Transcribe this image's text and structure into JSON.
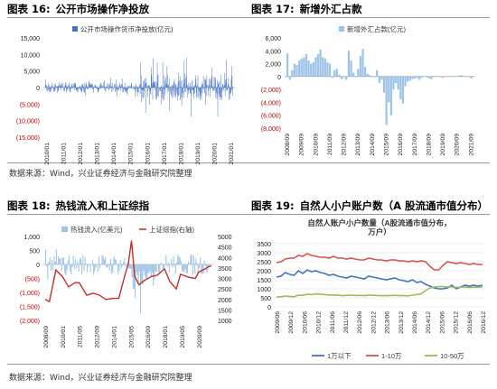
{
  "panels": {
    "p16": {
      "label": "图表 16:",
      "title": "公开市场操作净投放"
    },
    "p17": {
      "label": "图表 17:",
      "title": "新增外汇占款"
    },
    "p18": {
      "label": "图表 18:",
      "title": "热钱流入和上证综指"
    },
    "p19": {
      "label": "图表 19:",
      "title": "自然人小户账户数（A 股流通市值分布）"
    }
  },
  "sources": {
    "top": "数据来源：Wind，兴业证券经济与金融研究院整理",
    "bottom": "数据来源：Wind，兴业证券经济与金融研究院整理"
  },
  "colors": {
    "blue_bar": "#4472c4",
    "light_bar": "#9dc3e6",
    "red": "#c0302e",
    "blue_line": "#4472c4",
    "orange_line": "#d9534f",
    "green_line": "#9bbb59",
    "negative_text": "#c00000"
  },
  "chart_data": [
    {
      "type": "bar",
      "legend": [
        "公开市场操作货币净投放(亿元)"
      ],
      "legend_position": "top",
      "x_ticks": [
        "2010/01",
        "2011/01",
        "2012/01",
        "2013/01",
        "2014/01",
        "2015/01",
        "2016/01",
        "2017/01",
        "2018/01",
        "2019/01",
        "2020/01",
        "2021/01"
      ],
      "y_ticks": [
        "15,000",
        "10,000",
        "5,000",
        "0",
        "(5,000)",
        "(10,000)",
        "(15,000)"
      ],
      "ylim": [
        -15000,
        15000
      ],
      "series": [
        {
          "name": "公开市场操作货币净投放(亿元)",
          "date_range": [
            "2010/01",
            "2021/12"
          ],
          "frequency": "weekly",
          "typical_range_2010_2015": [
            -3000,
            3000
          ],
          "typical_range_2016_2021": [
            -9000,
            10000
          ]
        }
      ]
    },
    {
      "type": "bar",
      "legend": [
        "新增外汇占款(亿元)"
      ],
      "legend_position": "top",
      "x_ticks": [
        "2008/09",
        "2009/09",
        "2010/09",
        "2011/09",
        "2012/09",
        "2013/09",
        "2014/09",
        "2015/09",
        "2016/09",
        "2017/09",
        "2018/09",
        "2019/09",
        "2020/09",
        "2021/09"
      ],
      "y_ticks": [
        "6,000",
        "4,000",
        "2,000",
        "0",
        "(2,000)",
        "(4,000)",
        "(6,000)",
        "(8,000)"
      ],
      "ylim": [
        -8000,
        6000
      ],
      "series": [
        {
          "name": "新增外汇占款(亿元)",
          "x": [
            "2008/09",
            "2008/11",
            "2009/01",
            "2009/03",
            "2009/05",
            "2009/07",
            "2009/09",
            "2009/11",
            "2010/01",
            "2010/03",
            "2010/05",
            "2010/07",
            "2010/09",
            "2010/11",
            "2011/01",
            "2011/03",
            "2011/05",
            "2011/07",
            "2011/09",
            "2011/11",
            "2012/01",
            "2012/03",
            "2012/05",
            "2012/07",
            "2012/09",
            "2012/11",
            "2013/01",
            "2013/03",
            "2013/05",
            "2013/07",
            "2013/09",
            "2013/11",
            "2014/01",
            "2014/03",
            "2014/05",
            "2014/07",
            "2014/09",
            "2014/11",
            "2015/01",
            "2015/03",
            "2015/05",
            "2015/07",
            "2015/09",
            "2015/11",
            "2016/01",
            "2016/03",
            "2016/05",
            "2016/07",
            "2016/09",
            "2016/11",
            "2017/01",
            "2017/03",
            "2017/05",
            "2017/07",
            "2017/09",
            "2017/11",
            "2018/01",
            "2018/03",
            "2018/05",
            "2018/07",
            "2018/09",
            "2018/11",
            "2019/01",
            "2019/03",
            "2019/05",
            "2019/07",
            "2019/09",
            "2019/11",
            "2020/01",
            "2020/03",
            "2020/05",
            "2020/07",
            "2020/09",
            "2020/11",
            "2021/01",
            "2021/03",
            "2021/05",
            "2021/07",
            "2021/09",
            "2021/11"
          ],
          "values": [
            3600,
            -500,
            1000,
            2000,
            1800,
            2500,
            2800,
            3000,
            3500,
            2500,
            2000,
            2200,
            3000,
            3500,
            4200,
            3000,
            2800,
            2200,
            2000,
            -200,
            1000,
            1200,
            300,
            -400,
            -100,
            -500,
            4000,
            2500,
            600,
            -100,
            1200,
            3200,
            4300,
            1500,
            400,
            200,
            -100,
            -100,
            1000,
            -1000,
            -500,
            -2500,
            -7500,
            -4000,
            -6000,
            -2000,
            -1000,
            -2000,
            -3500,
            -4200,
            -1500,
            -800,
            -600,
            -400,
            -300,
            -200,
            -500,
            -200,
            0,
            -100,
            -300,
            -400,
            -100,
            0,
            0,
            -100,
            -200,
            0,
            0,
            100,
            0,
            100,
            0,
            200,
            200,
            100,
            0,
            0,
            -300,
            0
          ]
        }
      ]
    },
    {
      "type": "bar+line",
      "legend": [
        "热钱流入(亿美元)",
        "上证综指(右轴)"
      ],
      "legend_position": "top",
      "x_ticks": [
        "2008/09",
        "2010/01",
        "2011/05",
        "2012/09",
        "2014/01",
        "2015/05",
        "2016/09",
        "2018/01",
        "2019/05",
        "2020/09"
      ],
      "y_left_ticks": [
        "1,000",
        "500",
        "0",
        "(500)",
        "(1,000)",
        "(1,500)",
        "(2,000)"
      ],
      "y_right_ticks": [
        "5000",
        "4500",
        "4000",
        "3500",
        "3000",
        "2500",
        "2000",
        "1500",
        "1000"
      ],
      "ylim_left": [
        -2000,
        1000
      ],
      "ylim_right": [
        1000,
        5000
      ],
      "series": [
        {
          "name": "热钱流入(亿美元)",
          "axis": "left",
          "date_range": [
            "2008/09",
            "2021/06"
          ],
          "frequency": "monthly",
          "typical_range": [
            -600,
            300
          ],
          "min": -1750
        },
        {
          "name": "上证综指(右轴)",
          "axis": "right",
          "x": [
            "2008/09",
            "2009/01",
            "2009/07",
            "2010/01",
            "2010/07",
            "2011/01",
            "2011/05",
            "2011/12",
            "2012/06",
            "2012/12",
            "2013/06",
            "2014/01",
            "2014/06",
            "2014/12",
            "2015/03",
            "2015/06",
            "2015/09",
            "2016/01",
            "2016/06",
            "2017/01",
            "2017/06",
            "2018/01",
            "2018/06",
            "2018/12",
            "2019/04",
            "2019/12",
            "2020/06",
            "2020/09",
            "2021/03",
            "2021/06",
            "2021/09"
          ],
          "values": [
            2000,
            1900,
            3400,
            3100,
            2600,
            2800,
            2800,
            2200,
            2300,
            2200,
            2000,
            2050,
            2050,
            3200,
            3700,
            4800,
            3100,
            2700,
            2900,
            3100,
            3150,
            3450,
            2850,
            2500,
            3200,
            3050,
            3000,
            3300,
            3450,
            3550,
            3600
          ]
        }
      ]
    },
    {
      "type": "line",
      "title": "自然人账户小户数量（A股流通市值分布，万户）",
      "legend": [
        "1万以下",
        "1-10万",
        "10-50万"
      ],
      "legend_position": "bottom",
      "x_ticks": [
        "2009/06",
        "2009/12",
        "2010/06",
        "2010/12",
        "2011/06",
        "2011/12",
        "2012/06",
        "2012/12",
        "2013/06",
        "2013/12",
        "2014/06",
        "2014/12",
        "2015/06",
        "2015/12",
        "2016/06",
        "2016/12"
      ],
      "y_ticks": [
        "3500",
        "3000",
        "2500",
        "2000",
        "1500",
        "1000",
        "500",
        "0"
      ],
      "ylim": [
        0,
        3500
      ],
      "series": [
        {
          "name": "1万以下",
          "values": [
            1650,
            1700,
            1900,
            1800,
            1750,
            2000,
            1850,
            2050,
            1950,
            2000,
            1900,
            1850,
            1750,
            1800,
            1700,
            1650,
            1600,
            1700,
            1650,
            1600,
            1550,
            1700,
            1650,
            1600,
            1550,
            1500,
            1550,
            1600,
            1500,
            1450,
            1400,
            1500,
            1350,
            1400,
            1250,
            1150,
            1050,
            1000,
            1000,
            1050,
            1200,
            1000,
            1100,
            1200,
            1150,
            1200,
            1150,
            1200
          ]
        },
        {
          "name": "1-10万",
          "values": [
            2450,
            2500,
            2650,
            2700,
            2700,
            2850,
            2800,
            2950,
            2850,
            2800,
            2750,
            2750,
            2700,
            2800,
            2700,
            2700,
            2650,
            2700,
            2650,
            2600,
            2600,
            2700,
            2650,
            2600,
            2600,
            2550,
            2600,
            2600,
            2550,
            2550,
            2500,
            2550,
            2500,
            2550,
            2500,
            2250,
            2050,
            2050,
            2300,
            2500,
            2450,
            2400,
            2450,
            2400,
            2350,
            2400,
            2350,
            2350
          ]
        },
        {
          "name": "10-50万",
          "values": [
            550,
            560,
            600,
            580,
            560,
            650,
            640,
            700,
            680,
            720,
            700,
            680,
            650,
            660,
            640,
            620,
            640,
            650,
            630,
            640,
            620,
            650,
            640,
            630,
            620,
            620,
            630,
            640,
            620,
            630,
            610,
            650,
            680,
            720,
            900,
            1050,
            1100,
            1120,
            1120,
            1100,
            1100,
            1080,
            1090,
            1100,
            1080,
            1090,
            1090,
            1100
          ]
        }
      ]
    }
  ]
}
